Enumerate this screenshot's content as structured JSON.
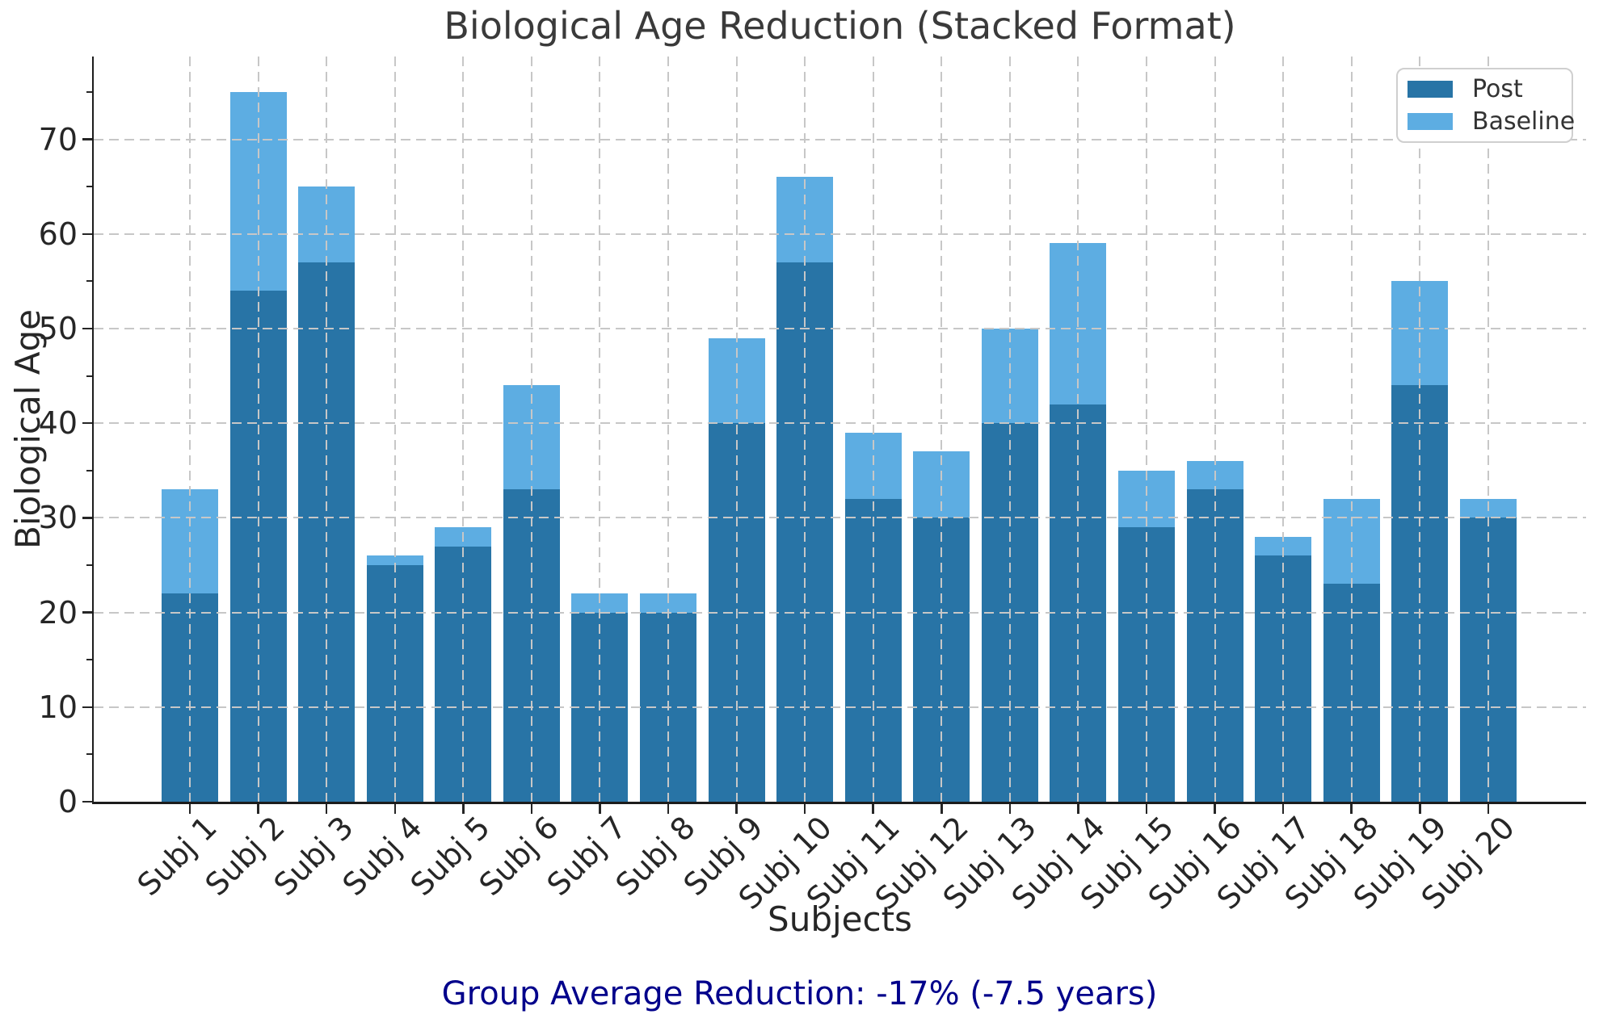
{
  "figure": {
    "title": "Biological Age Reduction (Stacked Format)",
    "xlabel": "Subjects",
    "ylabel": "Biological Age",
    "caption": "Group Average Reduction: -17% (-7.5 years)",
    "caption_color": "#00008b",
    "background_color": "#ffffff",
    "spine_color": "#1c1c1c",
    "grid_color": "#c7c7c7",
    "tick_label_color": "#262626",
    "title_color": "#3a3a3a"
  },
  "legend": {
    "position": "top-right",
    "items": [
      {
        "label": "Post",
        "color": "#2874a6"
      },
      {
        "label": "Baseline",
        "color": "#5dade2"
      }
    ]
  },
  "chart_data": {
    "type": "bar",
    "stacked": true,
    "title": "Biological Age Reduction (Stacked Format)",
    "xlabel": "Subjects",
    "ylabel": "Biological Age",
    "categories": [
      "Subj 1",
      "Subj 2",
      "Subj 3",
      "Subj 4",
      "Subj 5",
      "Subj 6",
      "Subj 7",
      "Subj 8",
      "Subj 9",
      "Subj 10",
      "Subj 11",
      "Subj 12",
      "Subj 13",
      "Subj 14",
      "Subj 15",
      "Subj 16",
      "Subj 17",
      "Subj 18",
      "Subj 19",
      "Subj 20"
    ],
    "series": [
      {
        "name": "Post",
        "color": "#2874a6",
        "values": [
          22,
          54,
          57,
          25,
          27,
          33,
          20,
          20,
          40,
          57,
          32,
          30,
          40,
          42,
          29,
          33,
          26,
          23,
          44,
          30
        ]
      },
      {
        "name": "Baseline",
        "color": "#5dade2",
        "values": [
          33,
          75,
          65,
          26,
          29,
          44,
          22,
          22,
          49,
          66,
          39,
          37,
          50,
          59,
          35,
          36,
          28,
          32,
          55,
          32
        ]
      }
    ],
    "stacking_note": "Dark 'Post' segment drawn from 0; light 'Baseline' segment drawn on top with height = Baseline - Post, so each bar tops out at the Baseline value.",
    "reductions": [
      11,
      21,
      8,
      1,
      2,
      11,
      2,
      2,
      9,
      9,
      7,
      7,
      10,
      17,
      6,
      3,
      2,
      9,
      11,
      2
    ],
    "group_average_reduction_percent": -17,
    "group_average_reduction_years": -7.5,
    "ylim": [
      0,
      78.75
    ],
    "yticks": [
      0,
      10,
      20,
      30,
      40,
      50,
      60,
      70
    ],
    "grid": "dashed, both axes, drawn over bars",
    "legend_position": "upper right"
  }
}
